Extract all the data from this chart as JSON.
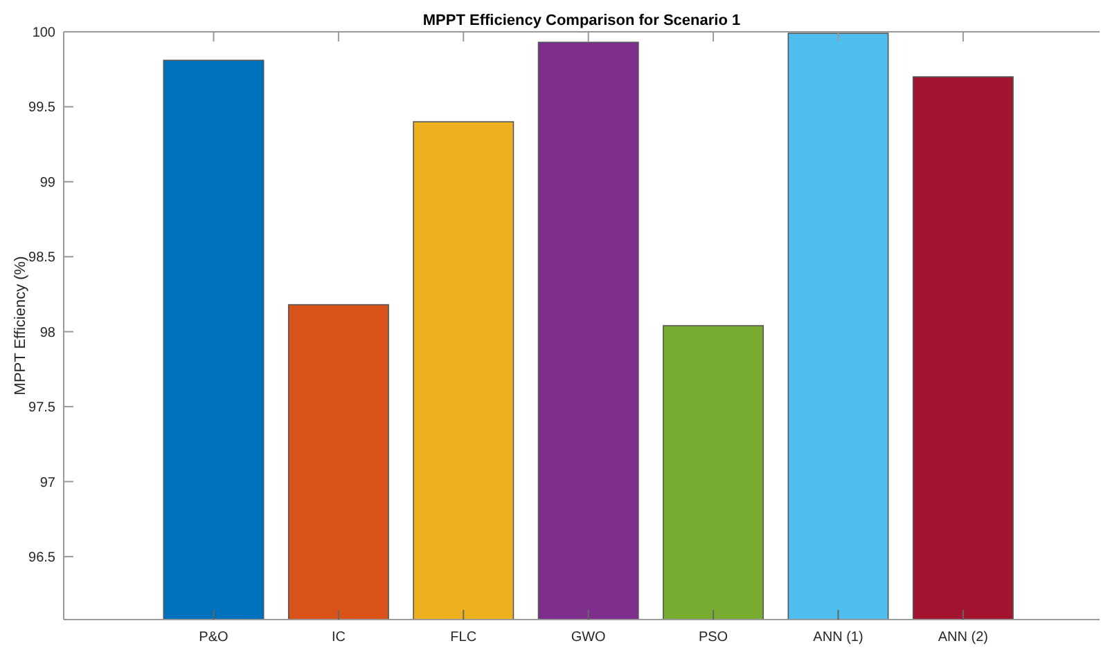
{
  "chart_data": {
    "type": "bar",
    "title": "MPPT Efficiency Comparison for Scenario 1",
    "ylabel": "MPPT Efficiency (%)",
    "categories": [
      "P&O",
      "IC",
      "FLC",
      "GWO",
      "PSO",
      "ANN (1)",
      "ANN (2)"
    ],
    "values": [
      99.81,
      98.18,
      99.4,
      99.93,
      98.04,
      99.99,
      99.7
    ],
    "colors": [
      "#0072bd",
      "#d95319",
      "#edb120",
      "#7e2f8e",
      "#77ac30",
      "#4dbeee",
      "#a2142f"
    ],
    "ylim": [
      96.08,
      100
    ],
    "yticks": [
      96.5,
      97,
      97.5,
      98,
      98.5,
      99,
      99.5,
      100
    ],
    "grid": false
  }
}
